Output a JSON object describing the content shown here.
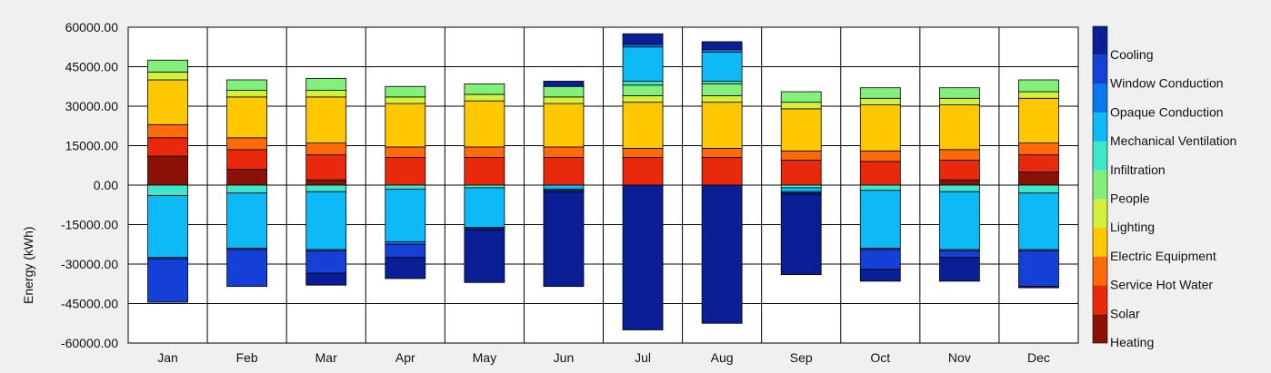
{
  "chart_data": {
    "type": "bar",
    "stacked": true,
    "title": "",
    "xlabel": "",
    "ylabel": "Energy (kWh)",
    "ylim": [
      -60000,
      60000
    ],
    "yticks": [
      60000,
      45000,
      30000,
      15000,
      0,
      -15000,
      -30000,
      -45000,
      -60000
    ],
    "ytick_labels": [
      "60000.00",
      "45000.00",
      "30000.00",
      "15000.00",
      "0.00",
      "-15000.00",
      "-30000.00",
      "-45000.00",
      "-60000.00"
    ],
    "grid": true,
    "legend_position": "right",
    "categories": [
      "Jan",
      "Feb",
      "Mar",
      "Apr",
      "May",
      "Jun",
      "Jul",
      "Aug",
      "Sep",
      "Oct",
      "Nov",
      "Dec"
    ],
    "series": [
      {
        "name": "Heating",
        "color": "#8b1006",
        "values": [
          11000,
          6000,
          2000,
          0,
          0,
          0,
          0,
          0,
          0,
          0,
          2000,
          5000
        ]
      },
      {
        "name": "Solar",
        "color": "#e8290b",
        "values": [
          7000,
          7500,
          9500,
          10500,
          10500,
          10500,
          10500,
          10500,
          9500,
          9000,
          7500,
          6500
        ]
      },
      {
        "name": "Service Hot Water",
        "color": "#ff6a0a",
        "values": [
          5000,
          4500,
          4500,
          4000,
          4000,
          4000,
          3500,
          3500,
          3500,
          4000,
          4000,
          4500
        ]
      },
      {
        "name": "Electric Equipment",
        "color": "#ffc800",
        "values": [
          17000,
          15500,
          17500,
          16500,
          17500,
          16500,
          17500,
          17500,
          16000,
          17500,
          17000,
          17000
        ]
      },
      {
        "name": "Lighting",
        "color": "#d3f03c",
        "values": [
          3000,
          2500,
          2500,
          2500,
          2500,
          2500,
          2500,
          2500,
          2500,
          2500,
          2500,
          2500
        ]
      },
      {
        "name": "People",
        "color": "#82f07a",
        "values": [
          4500,
          4000,
          4500,
          4000,
          4000,
          4000,
          4000,
          4500,
          4000,
          4000,
          4000,
          4500
        ],
        "neg_values": [
          0,
          0,
          0,
          0,
          0,
          0,
          0,
          0,
          0,
          0,
          0,
          0
        ]
      },
      {
        "name": "Infiltration",
        "color": "#3fe6c8",
        "values": [
          0,
          0,
          0,
          0,
          0,
          0,
          1500,
          1000,
          0,
          0,
          0,
          0
        ],
        "neg_values": [
          -4000,
          -3000,
          -2500,
          -1500,
          -1000,
          0,
          0,
          0,
          -1000,
          -2000,
          -2500,
          -3000
        ]
      },
      {
        "name": "Mechanical Ventilation",
        "color": "#0ebaf5",
        "values": [
          0,
          0,
          0,
          0,
          0,
          0,
          13000,
          11000,
          0,
          0,
          0,
          0
        ],
        "neg_values": [
          -23500,
          -21000,
          -22000,
          -20000,
          -15000,
          -1500,
          0,
          0,
          -1500,
          -22000,
          -22000,
          -21500
        ]
      },
      {
        "name": "Opaque Conduction",
        "color": "#0a78ec",
        "values": [
          0,
          0,
          0,
          0,
          0,
          0,
          1000,
          1000,
          0,
          0,
          0,
          0
        ],
        "neg_values": [
          -500,
          -500,
          -500,
          -1000,
          -500,
          -500,
          0,
          0,
          -500,
          -500,
          -500,
          -500
        ]
      },
      {
        "name": "Window Conduction",
        "color": "#1440d8",
        "values": [
          0,
          0,
          0,
          0,
          0,
          0,
          0,
          0,
          0,
          0,
          0,
          0
        ],
        "neg_values": [
          -16500,
          -14000,
          -8500,
          -5000,
          -500,
          -500,
          0,
          0,
          -500,
          -7500,
          -2500,
          -13500
        ]
      },
      {
        "name": "Cooling",
        "color": "#0a1f96",
        "values": [
          0,
          0,
          0,
          0,
          0,
          2000,
          4000,
          3000,
          0,
          0,
          0,
          0
        ],
        "neg_values": [
          0,
          0,
          -4500,
          -8000,
          -20000,
          -36000,
          -55000,
          -52500,
          -30500,
          -4500,
          -9000,
          -500
        ]
      }
    ]
  }
}
